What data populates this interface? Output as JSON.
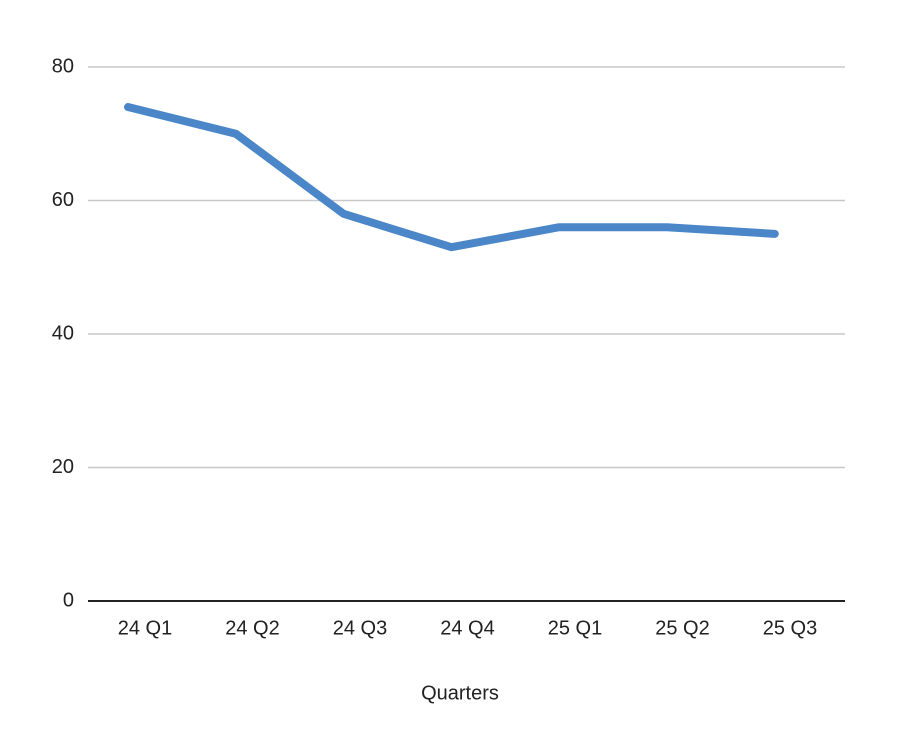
{
  "chart_data": {
    "type": "line",
    "categories": [
      "24 Q1",
      "24 Q2",
      "24 Q3",
      "24 Q4",
      "25 Q1",
      "25 Q2",
      "25 Q3"
    ],
    "series": [
      {
        "color": "#4a86c8",
        "values": [
          74,
          70,
          58,
          53,
          56,
          56,
          55
        ]
      }
    ],
    "x_label": "Quarters",
    "ylim": [
      0,
      80
    ],
    "yticks": [
      0,
      20,
      40,
      60,
      80
    ],
    "grid": true
  }
}
